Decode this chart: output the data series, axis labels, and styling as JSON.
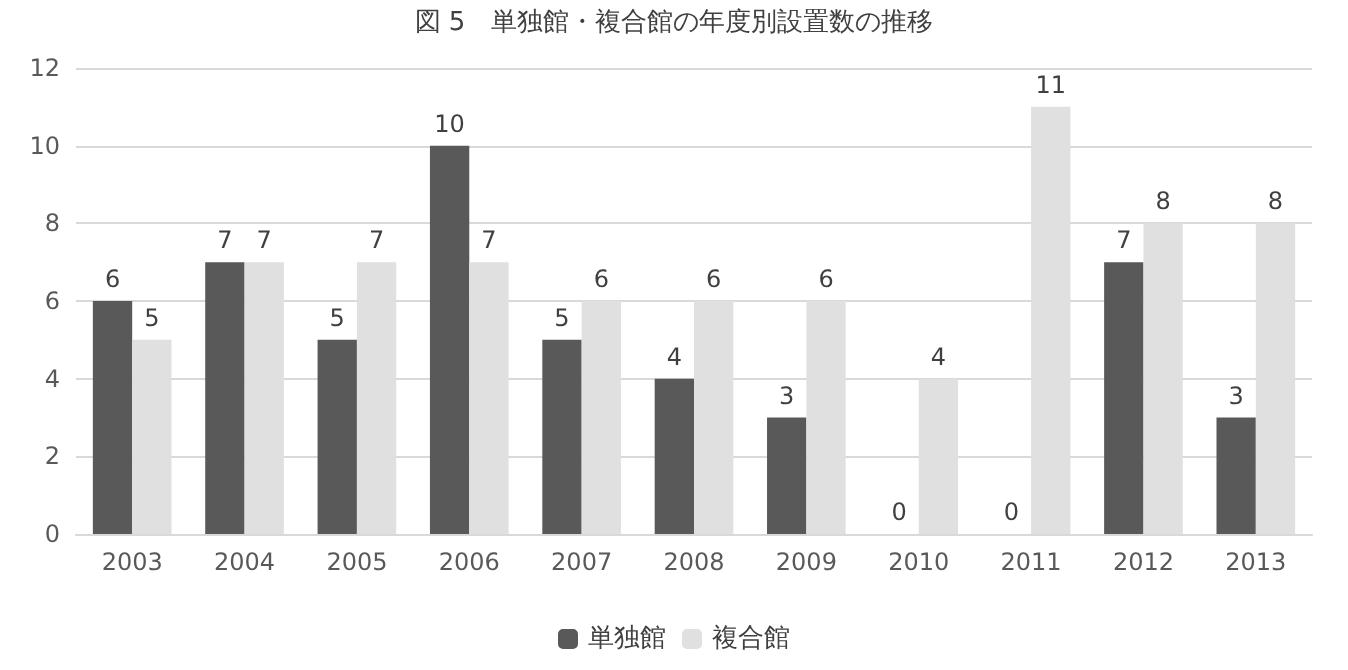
{
  "chart_data": {
    "type": "bar",
    "title": "図 5　単独館・複合館の年度別設置数の推移",
    "categories": [
      "2003",
      "2004",
      "2005",
      "2006",
      "2007",
      "2008",
      "2009",
      "2010",
      "2011",
      "2012",
      "2013"
    ],
    "series": [
      {
        "name": "単独館",
        "color": "#595959",
        "values": [
          6,
          7,
          5,
          10,
          5,
          4,
          3,
          0,
          0,
          7,
          3
        ]
      },
      {
        "name": "複合館",
        "color": "#e0e0e0",
        "values": [
          5,
          7,
          7,
          7,
          6,
          6,
          6,
          4,
          11,
          8,
          8
        ]
      }
    ],
    "ylim": [
      0,
      12
    ],
    "yticks": [
      0,
      2,
      4,
      6,
      8,
      10,
      12
    ],
    "grid": "y",
    "legend": "bottom",
    "data_labels": true
  }
}
